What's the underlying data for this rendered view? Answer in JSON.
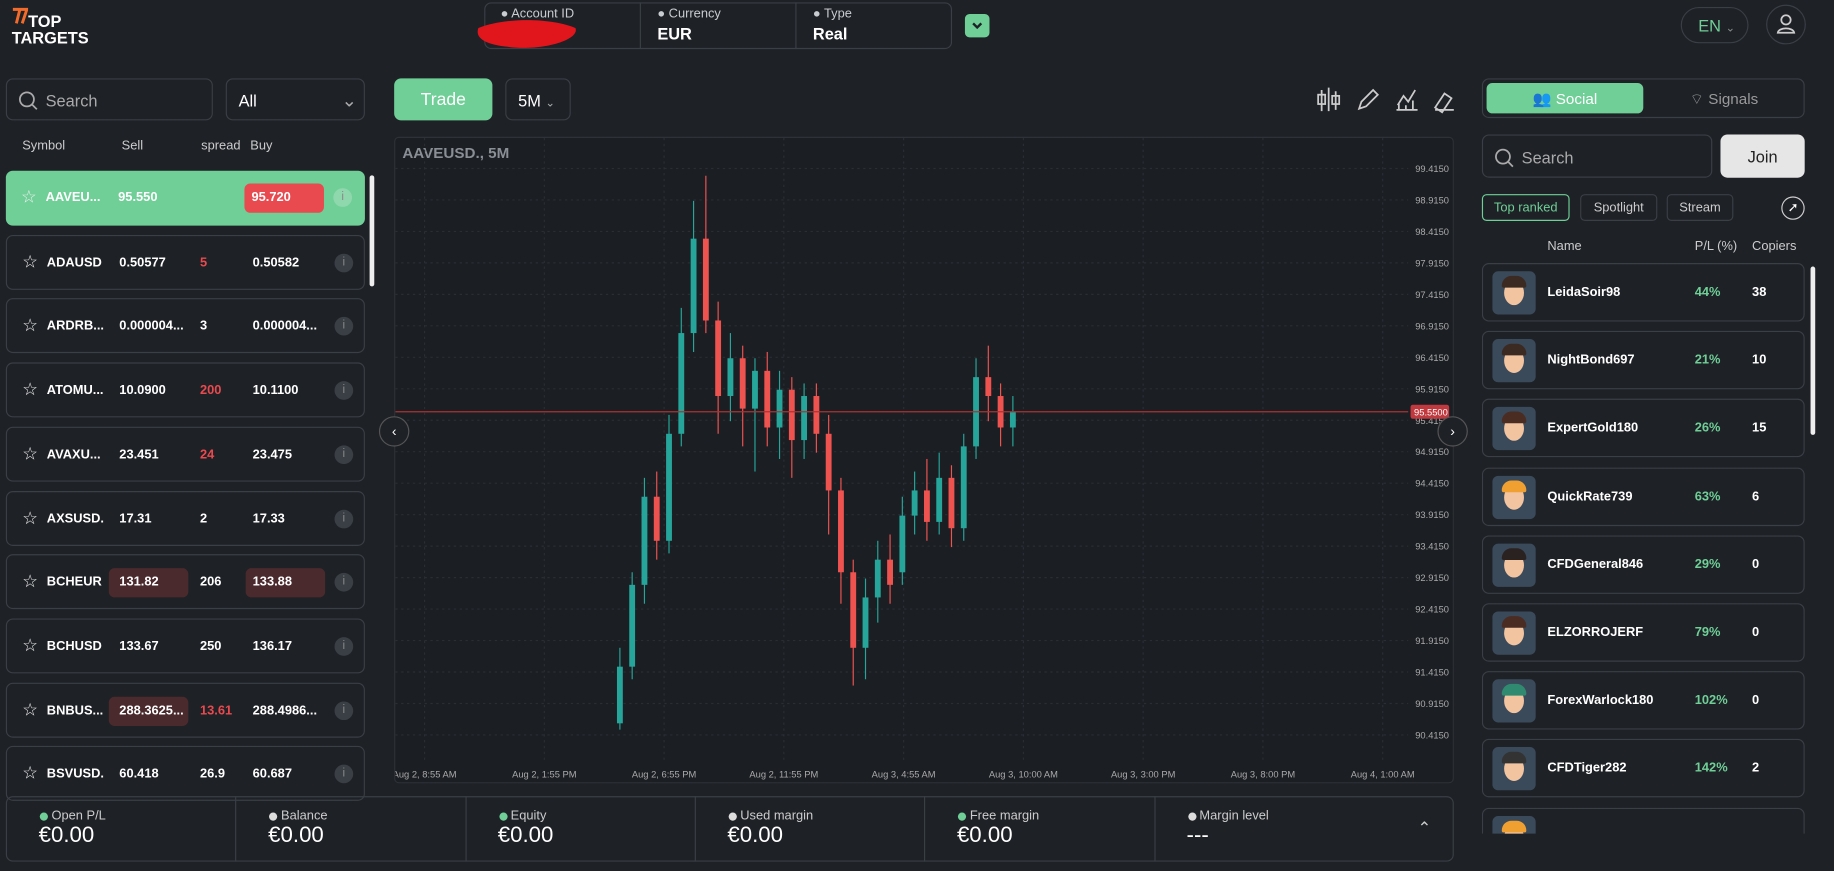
{
  "header": {
    "logo_top": "TOP",
    "logo_bottom": "TARGETS",
    "account_id_label": "Account ID",
    "currency_label": "Currency",
    "currency": "EUR",
    "type_label": "Type",
    "type": "Real",
    "language": "EN"
  },
  "watchlist": {
    "search_placeholder": "Search",
    "filter": "All",
    "columns": [
      "Symbol",
      "Sell",
      "spread",
      "Buy"
    ],
    "rows": [
      {
        "symbol": "AAVEU...",
        "sell": "95.550",
        "spread": "",
        "buy": "95.720",
        "buy_bg": "#e84a4f"
      },
      {
        "symbol": "ADAUSD",
        "sell": "0.50577",
        "spread": "5",
        "buy": "0.50582",
        "spread_color": "#e84a4f"
      },
      {
        "symbol": "ARDRB...",
        "sell": "0.000004...",
        "spread": "3",
        "buy": "0.000004..."
      },
      {
        "symbol": "ATOMU...",
        "sell": "10.0900",
        "spread": "200",
        "buy": "10.1100",
        "spread_color": "#e84a4f"
      },
      {
        "symbol": "AVAXU...",
        "sell": "23.451",
        "spread": "24",
        "buy": "23.475",
        "spread_color": "#e84a4f"
      },
      {
        "symbol": "AXSUSD.",
        "sell": "17.31",
        "spread": "2",
        "buy": "17.33"
      },
      {
        "symbol": "BCHEUR",
        "sell": "131.82",
        "spread": "206",
        "buy": "133.88",
        "sell_bg": "#4a2a2d",
        "buy_bg": "#4a2a2d"
      },
      {
        "symbol": "BCHUSD",
        "sell": "133.67",
        "spread": "250",
        "buy": "136.17"
      },
      {
        "symbol": "BNBUS...",
        "sell": "288.3625...",
        "spread": "13.61",
        "buy": "288.4986...",
        "spread_color": "#e84a4f",
        "sell_bg": "#4a2a2d"
      },
      {
        "symbol": "BSVUSD.",
        "sell": "60.418",
        "spread": "26.9",
        "buy": "60.687"
      }
    ]
  },
  "toolbar": {
    "trade": "Trade",
    "timeframe": "5M"
  },
  "chart_data": {
    "type": "candlestick",
    "title": "AAVEUSD., 5M",
    "up_color": "#26a69a",
    "down_color": "#ef5350",
    "grid": true,
    "ylim": [
      90.0,
      99.9
    ],
    "yticks": [
      {
        "value": 90.415,
        "label": "90.4150"
      },
      {
        "value": 90.915,
        "label": "90.9150"
      },
      {
        "value": 91.415,
        "label": "91.4150"
      },
      {
        "value": 91.915,
        "label": "91.9150"
      },
      {
        "value": 92.415,
        "label": "92.4150"
      },
      {
        "value": 92.915,
        "label": "92.9150"
      },
      {
        "value": 93.415,
        "label": "93.4150"
      },
      {
        "value": 93.915,
        "label": "93.9150"
      },
      {
        "value": 94.415,
        "label": "94.4150"
      },
      {
        "value": 94.915,
        "label": "94.9150"
      },
      {
        "value": 95.415,
        "label": "95.4150"
      },
      {
        "value": 95.915,
        "label": "95.9150"
      },
      {
        "value": 96.415,
        "label": "96.4150"
      },
      {
        "value": 96.915,
        "label": "96.9150"
      },
      {
        "value": 97.415,
        "label": "97.4150"
      },
      {
        "value": 97.915,
        "label": "97.9150"
      },
      {
        "value": 98.415,
        "label": "98.4150"
      },
      {
        "value": 98.915,
        "label": "98.9150"
      },
      {
        "value": 99.415,
        "label": "99.4150"
      }
    ],
    "xtick_labels": [
      "Aug 2, 8:55 AM",
      "Aug 2, 1:55 PM",
      "Aug 2, 6:55 PM",
      "Aug 2, 11:55 PM",
      "Aug 3, 4:55 AM",
      "Aug 3, 10:00 AM",
      "Aug 3, 3:00 PM",
      "Aug 3, 8:00 PM",
      "Aug 4, 1:00 AM"
    ],
    "last_price": {
      "value": 95.55,
      "label": "95.5500"
    },
    "candles": [
      {
        "o": 90.6,
        "h": 91.8,
        "l": 90.5,
        "c": 91.5
      },
      {
        "o": 91.5,
        "h": 93,
        "l": 91.3,
        "c": 92.8
      },
      {
        "o": 92.8,
        "h": 94.5,
        "l": 92.5,
        "c": 94.2
      },
      {
        "o": 94.2,
        "h": 94.6,
        "l": 93.2,
        "c": 93.5
      },
      {
        "o": 93.5,
        "h": 95.5,
        "l": 93.3,
        "c": 95.2
      },
      {
        "o": 95.2,
        "h": 97.2,
        "l": 95,
        "c": 96.8
      },
      {
        "o": 96.8,
        "h": 98.9,
        "l": 96.5,
        "c": 98.3
      },
      {
        "o": 98.3,
        "h": 99.3,
        "l": 96.8,
        "c": 97
      },
      {
        "o": 97,
        "h": 97.3,
        "l": 95.2,
        "c": 95.8
      },
      {
        "o": 95.8,
        "h": 96.8,
        "l": 95.4,
        "c": 96.4
      },
      {
        "o": 96.4,
        "h": 96.6,
        "l": 95,
        "c": 95.6
      },
      {
        "o": 95.6,
        "h": 96.4,
        "l": 94.6,
        "c": 96.2
      },
      {
        "o": 96.2,
        "h": 96.5,
        "l": 95,
        "c": 95.3
      },
      {
        "o": 95.3,
        "h": 96.2,
        "l": 94.8,
        "c": 95.9
      },
      {
        "o": 95.9,
        "h": 96.1,
        "l": 94.5,
        "c": 95.1
      },
      {
        "o": 95.1,
        "h": 96,
        "l": 94.8,
        "c": 95.8
      },
      {
        "o": 95.8,
        "h": 96,
        "l": 94.9,
        "c": 95.2
      },
      {
        "o": 95.2,
        "h": 95.5,
        "l": 93.6,
        "c": 94.3
      },
      {
        "o": 94.3,
        "h": 94.5,
        "l": 92.5,
        "c": 93
      },
      {
        "o": 93,
        "h": 93.2,
        "l": 91.2,
        "c": 91.8
      },
      {
        "o": 91.8,
        "h": 92.9,
        "l": 91.3,
        "c": 92.6
      },
      {
        "o": 92.6,
        "h": 93.5,
        "l": 92.2,
        "c": 93.2
      },
      {
        "o": 93.2,
        "h": 93.6,
        "l": 92.5,
        "c": 92.8
      },
      {
        "o": 93,
        "h": 94.2,
        "l": 92.8,
        "c": 93.9
      },
      {
        "o": 93.9,
        "h": 94.6,
        "l": 93.6,
        "c": 94.3
      },
      {
        "o": 94.3,
        "h": 94.8,
        "l": 93.5,
        "c": 93.8
      },
      {
        "o": 93.8,
        "h": 94.9,
        "l": 93.6,
        "c": 94.5
      },
      {
        "o": 94.5,
        "h": 94.7,
        "l": 93.4,
        "c": 93.7
      },
      {
        "o": 93.7,
        "h": 95.2,
        "l": 93.5,
        "c": 95
      },
      {
        "o": 95,
        "h": 96.4,
        "l": 94.8,
        "c": 96.1
      },
      {
        "o": 96.1,
        "h": 96.6,
        "l": 95.4,
        "c": 95.8
      },
      {
        "o": 95.8,
        "h": 96,
        "l": 95,
        "c": 95.3
      },
      {
        "o": 95.3,
        "h": 95.8,
        "l": 95,
        "c": 95.55
      }
    ]
  },
  "social": {
    "tabs": [
      "Social",
      "Signals"
    ],
    "search_placeholder": "Search",
    "join": "Join",
    "filters": [
      "Top ranked",
      "Spotlight",
      "Stream"
    ],
    "columns": [
      "Name",
      "P/L (%)",
      "Copiers"
    ],
    "rows": [
      {
        "name": "LeidaSoir98",
        "pl": "44%",
        "copiers": "38"
      },
      {
        "name": "NightBond697",
        "pl": "21%",
        "copiers": "10"
      },
      {
        "name": "ExpertGold180",
        "pl": "26%",
        "copiers": "15"
      },
      {
        "name": "QuickRate739",
        "pl": "63%",
        "copiers": "6"
      },
      {
        "name": "CFDGeneral846",
        "pl": "29%",
        "copiers": "0"
      },
      {
        "name": "ELZORROJERF",
        "pl": "79%",
        "copiers": "0"
      },
      {
        "name": "ForexWarlock180",
        "pl": "102%",
        "copiers": "0"
      },
      {
        "name": "CFDTiger282",
        "pl": "142%",
        "copiers": "2"
      }
    ]
  },
  "account_bar": [
    {
      "label": "Open P/L",
      "value": "€0.00"
    },
    {
      "label": "Balance",
      "value": "€0.00"
    },
    {
      "label": "Equity",
      "value": "€0.00"
    },
    {
      "label": "Used margin",
      "value": "€0.00"
    },
    {
      "label": "Free margin",
      "value": "€0.00"
    },
    {
      "label": "Margin level",
      "value": "---"
    }
  ]
}
